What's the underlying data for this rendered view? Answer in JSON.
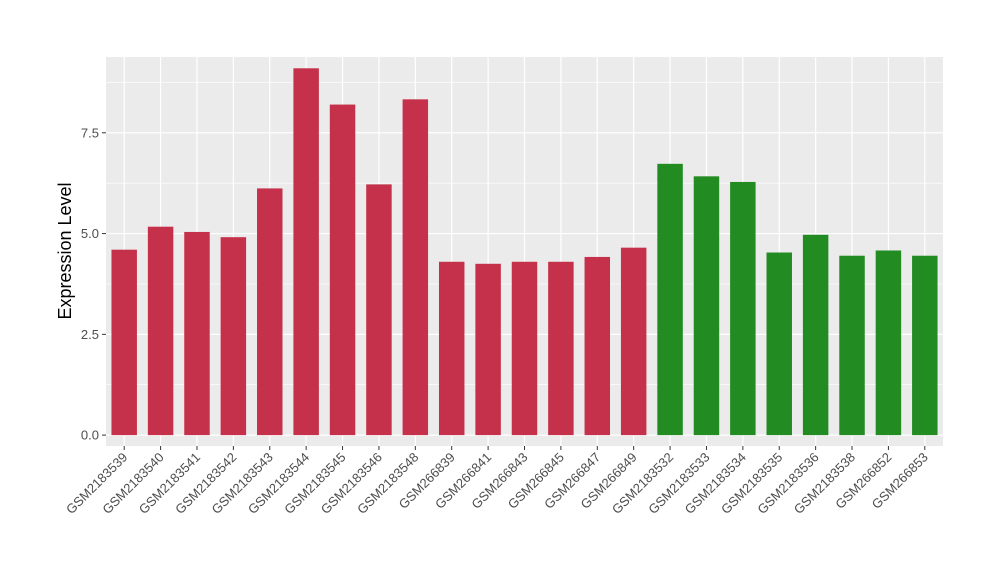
{
  "chart_data": {
    "type": "bar",
    "title": "",
    "xlabel": "",
    "ylabel": "Expression Level",
    "ylim": [
      -0.27,
      9.38
    ],
    "yticks": [
      0.0,
      2.5,
      5.0,
      7.5
    ],
    "ytick_labels": [
      "0.0",
      "2.5",
      "5.0",
      "7.5"
    ],
    "grid": true,
    "legend": "none",
    "categories": [
      "GSM2183539",
      "GSM2183540",
      "GSM2183541",
      "GSM2183542",
      "GSM2183543",
      "GSM2183544",
      "GSM2183545",
      "GSM2183546",
      "GSM2183548",
      "GSM266839",
      "GSM266841",
      "GSM266843",
      "GSM266845",
      "GSM266847",
      "GSM266849",
      "GSM2183532",
      "GSM2183533",
      "GSM2183534",
      "GSM2183535",
      "GSM2183536",
      "GSM2183538",
      "GSM266852",
      "GSM266853"
    ],
    "values": [
      4.6,
      5.17,
      5.04,
      4.91,
      6.12,
      9.1,
      8.2,
      6.22,
      8.33,
      4.3,
      4.25,
      4.3,
      4.3,
      4.42,
      4.65,
      6.73,
      6.42,
      6.28,
      4.53,
      4.97,
      4.45,
      4.58,
      4.45
    ],
    "colors": [
      "#C5314A",
      "#C5314A",
      "#C5314A",
      "#C5314A",
      "#C5314A",
      "#C5314A",
      "#C5314A",
      "#C5314A",
      "#C5314A",
      "#C5314A",
      "#C5314A",
      "#C5314A",
      "#C5314A",
      "#C5314A",
      "#C5314A",
      "#228B22",
      "#228B22",
      "#228B22",
      "#228B22",
      "#228B22",
      "#228B22",
      "#228B22",
      "#228B22"
    ],
    "panel_background": "#EBEBEB",
    "grid_color": "#FFFFFF"
  }
}
